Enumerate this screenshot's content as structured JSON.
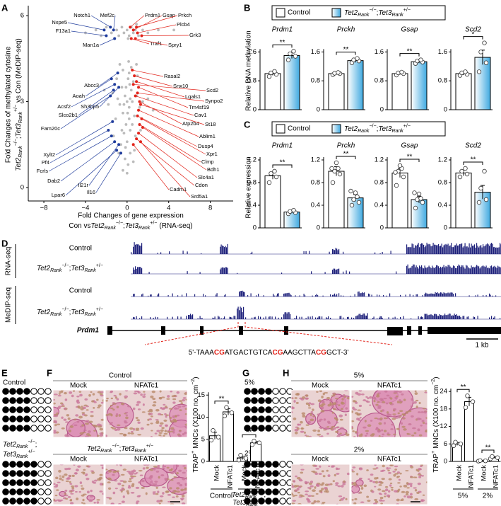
{
  "panel_labels": [
    "A",
    "B",
    "C",
    "D",
    "E",
    "F",
    "G",
    "H"
  ],
  "control": "Control",
  "genotype": [
    "Tet2",
    "Rank",
    "−/−",
    ";",
    "Tet3",
    "Rank",
    "+/−"
  ],
  "scatter_ylabel": [
    "Fold Changes of methylated cytosine",
    "vs Con (MeDIP-seq)"
  ],
  "scatter_xlabel": [
    "Fold Changes of gene expression",
    "Con vs",
    "(RNA-seq)"
  ],
  "b_ylabel": "Relative DNA methylation",
  "c_ylabel": "Relative expression",
  "trap_ylabel": [
    "TRAP",
    "+",
    "MNCs (X100 no. cm",
    "−2",
    ")"
  ],
  "d": {
    "groups": [
      "RNA-seq",
      "MeDIP-seq"
    ],
    "gene": "Prdm1",
    "scale": "1 kb",
    "sequence": [
      "5'-TAAA",
      "CG",
      "ATGACTGTCA",
      "CG",
      "AAGCTTA",
      "CG",
      "GCT-3'"
    ]
  },
  "chart_data": [
    {
      "type": "scatter",
      "xlim": [
        -9.5,
        10.2
      ],
      "ylim": [
        -0.47,
        6.35
      ],
      "xticks": [
        {
          "value": -8,
          "label": "−8"
        },
        {
          "value": -4,
          "label": "−4"
        },
        0,
        4,
        8
      ],
      "yticks": [
        0,
        3,
        6
      ],
      "color": "#555555",
      "x": [
        -3,
        -2.5,
        -2,
        -1.5,
        -1,
        -0.8,
        -0.5,
        -0.3,
        0,
        0.2,
        0.4,
        0.6,
        0.8,
        1.1,
        1.5,
        2,
        3,
        -4,
        4.5,
        -1.2,
        0.1,
        0.9,
        0,
        0.2,
        -0.2,
        0.4,
        -0.4,
        0.1,
        -0.1,
        0.3,
        0.5,
        -0.5,
        0.7,
        -0.7,
        0.2,
        0,
        0.6,
        -0.3,
        0.9,
        -0.9,
        0.3,
        -0.2,
        0.1,
        1.2,
        -1.1,
        0.8,
        -0.6,
        0.4,
        -0.4,
        1.0,
        -1.0,
        0,
        1.5,
        -1.4,
        0.2,
        -0.1,
        0.5,
        -0.5,
        0.7,
        -0.8,
        0.15,
        2,
        -1.8,
        0.3,
        -0.3,
        0.05,
        0.25,
        -0.15,
        1.3,
        -1.3,
        0.6,
        -0.4,
        2.5,
        -2.2,
        0.9,
        -0.7
      ],
      "values": [
        5.5,
        5.3,
        5.6,
        5.4,
        5.5,
        5.3,
        5.6,
        5.4,
        5.5,
        5.3,
        5.6,
        5.4,
        5.5,
        5.3,
        5.5,
        5.4,
        5.5,
        5.4,
        5.5,
        5.2,
        5.2,
        5.7,
        3.0,
        2.8,
        3.2,
        3.4,
        2.6,
        3.8,
        2.2,
        2.0,
        3.0,
        3.5,
        2.5,
        2.9,
        4.0,
        1.6,
        3.7,
        1.9,
        3.2,
        3.1,
        1.2,
        1.0,
        0.8,
        2.8,
        2.4,
        1.8,
        1.5,
        4.2,
        4.1,
        3.9,
        3.8,
        0.5,
        3.0,
        3.3,
        2.4,
        3.5,
        2.2,
        2.0,
        1.3,
        1.2,
        4.4,
        3.1,
        2.9,
        3.1,
        2.9,
        2.6,
        3.6,
        1.4,
        2.0,
        1.8,
        0.9,
        0.6,
        2.7,
        3.4,
        4.3,
        4.3
      ],
      "highlight_groups": [
        {
          "color": "#1f3c9c",
          "labels": [
            "Nxpe5",
            "Notch1",
            "Mef2c",
            "F13a1",
            "Man1a",
            "Abcc3",
            "Aoah",
            "Acsf2",
            "Sh3bp5",
            "Slco2b1",
            "Fam20c",
            "Xylt2",
            "Pf4",
            "Fcrls",
            "Dab2",
            "Lpar6",
            "Il21r",
            "Il16"
          ],
          "x": [
            -2.2,
            -1.6,
            -1.3,
            -2.0,
            -1.2,
            -0.9,
            -1.5,
            -1.2,
            -0.8,
            -1.3,
            -1.6,
            -1.4,
            -1.8,
            -1.5,
            -1.2,
            -1.0,
            -0.8,
            -0.6
          ],
          "values": [
            5.5,
            5.6,
            5.5,
            5.3,
            5.2,
            4.0,
            3.8,
            3.6,
            3.5,
            3.4,
            3.2,
            2.3,
            2.0,
            1.8,
            1.6,
            1.3,
            1.5,
            1.2
          ]
        },
        {
          "color": "#e2231a",
          "labels": [
            "Prdm1",
            "Gsap",
            "Prkch",
            "Plcb4",
            "Grk3",
            "Traf1",
            "Spry1",
            "Rasal2",
            "Snx10",
            "Lgals1",
            "Tm4sf19",
            "Scd2",
            "Synpo2",
            "Cav1",
            "Atp2b4",
            "St18",
            "Ablim1",
            "Dusp4",
            "Xpr1",
            "Clmp",
            "Bdh1",
            "Slc4a1",
            "Cdon",
            "Cadm1",
            "Srd5a1"
          ],
          "x": [
            0.3,
            0.6,
            0.9,
            1.0,
            1.4,
            0.4,
            0.8,
            0.5,
            0.7,
            0.9,
            1.1,
            0.6,
            1.0,
            0.8,
            1.2,
            1.3,
            1.1,
            1.0,
            1.4,
            1.2,
            1.5,
            1.1,
            0.9,
            0.6,
            1.3
          ],
          "values": [
            5.6,
            5.5,
            5.6,
            5.4,
            5.3,
            5.2,
            5.2,
            4.1,
            3.9,
            3.7,
            3.5,
            3.6,
            3.3,
            3.2,
            3.0,
            2.9,
            2.7,
            2.5,
            2.4,
            2.2,
            2.1,
            1.9,
            1.7,
            1.5,
            1.6
          ]
        }
      ]
    },
    {
      "type": "bar",
      "title": "Prdm1",
      "ylim": [
        0,
        2.0
      ],
      "yticks": [
        0,
        0.8,
        1.6
      ],
      "values": [
        1.0,
        1.5
      ],
      "errors": [
        0.05,
        0.08
      ],
      "points": [
        [
          0.92,
          0.98,
          1.02,
          1.06
        ],
        [
          1.38,
          1.48,
          1.55,
          1.62
        ]
      ],
      "significance": [
        "**"
      ],
      "colors": [
        "#ffffff",
        "#3fa9e0"
      ]
    },
    {
      "type": "bar",
      "title": "Prckh",
      "ylim": [
        0,
        2.0
      ],
      "yticks": [
        0,
        0.8,
        1.6
      ],
      "values": [
        1.0,
        1.36
      ],
      "errors": [
        0.03,
        0.05
      ],
      "points": [
        [
          0.97,
          1.0,
          1.01,
          1.03
        ],
        [
          1.3,
          1.35,
          1.38,
          1.42
        ]
      ],
      "significance": [
        "**"
      ],
      "colors": [
        "#ffffff",
        "#3fa9e0"
      ]
    },
    {
      "type": "bar",
      "title": "Gsap",
      "ylim": [
        0,
        2.0
      ],
      "yticks": [
        0,
        0.8,
        1.6
      ],
      "values": [
        1.0,
        1.33
      ],
      "errors": [
        0.03,
        0.04
      ],
      "points": [
        [
          0.96,
          1.0,
          1.02,
          1.04
        ],
        [
          1.28,
          1.32,
          1.35,
          1.38
        ]
      ],
      "significance": [
        "**"
      ],
      "colors": [
        "#ffffff",
        "#3fa9e0"
      ]
    },
    {
      "type": "bar",
      "title": "Scd2",
      "ylim": [
        0,
        2.0
      ],
      "yticks": [
        0,
        0.8,
        1.6
      ],
      "values": [
        1.0,
        1.45
      ],
      "errors": [
        0.04,
        0.2
      ],
      "points": [
        [
          0.95,
          0.98,
          1.02,
          1.05
        ],
        [
          1.05,
          1.3,
          1.6,
          1.85
        ]
      ],
      "significance": [
        "*"
      ],
      "colors": [
        "#ffffff",
        "#3fa9e0"
      ]
    },
    {
      "type": "bar",
      "title": "Prdm1",
      "ylim": [
        0,
        1.4
      ],
      "yticks": [
        0,
        0.4,
        0.8,
        1.2
      ],
      "values": [
        0.92,
        0.28
      ],
      "errors": [
        0.06,
        0.02
      ],
      "points": [
        [
          0.8,
          0.9,
          0.96,
          1.0
        ],
        [
          0.25,
          0.27,
          0.29,
          0.31
        ]
      ],
      "significance": [
        "**"
      ],
      "colors": [
        "#ffffff",
        "#3fa9e0"
      ]
    },
    {
      "type": "bar",
      "title": "Prckh",
      "ylim": [
        0,
        1.4
      ],
      "yticks": [
        0,
        0.4,
        0.8,
        1.2
      ],
      "values": [
        1.0,
        0.53
      ],
      "errors": [
        0.08,
        0.06
      ],
      "points": [
        [
          0.8,
          0.95,
          1.0,
          1.05,
          1.15,
          1.05
        ],
        [
          0.4,
          0.45,
          0.5,
          0.55,
          0.62,
          0.65
        ]
      ],
      "significance": [
        "**"
      ],
      "colors": [
        "#ffffff",
        "#3fa9e0"
      ]
    },
    {
      "type": "bar",
      "title": "Gsap",
      "ylim": [
        0,
        1.4
      ],
      "yticks": [
        0,
        0.4,
        0.8,
        1.2
      ],
      "values": [
        0.97,
        0.5
      ],
      "errors": [
        0.08,
        0.06
      ],
      "points": [
        [
          0.75,
          0.9,
          1.0,
          1.05,
          1.1,
          0.98
        ],
        [
          0.35,
          0.45,
          0.5,
          0.52,
          0.6,
          0.62
        ]
      ],
      "significance": [
        "**"
      ],
      "colors": [
        "#ffffff",
        "#3fa9e0"
      ]
    },
    {
      "type": "bar",
      "title": "Scd2",
      "ylim": [
        0,
        1.4
      ],
      "yticks": [
        0,
        0.4,
        0.8,
        1.2
      ],
      "values": [
        0.97,
        0.63
      ],
      "errors": [
        0.05,
        0.12
      ],
      "points": [
        [
          0.9,
          0.95,
          1.0,
          1.05
        ],
        [
          0.45,
          0.5,
          0.7,
          1.0
        ]
      ],
      "significance": [
        "**"
      ],
      "colors": [
        "#ffffff",
        "#3fa9e0"
      ]
    },
    {
      "type": "bar",
      "categories": [
        "Mock",
        "NFATc1",
        "Mock",
        "NFATc1"
      ],
      "ylim": [
        0,
        16
      ],
      "yticks": [
        0,
        5,
        10,
        15
      ],
      "values": [
        5.8,
        11.2,
        0.8,
        4.2
      ],
      "errors": [
        0.8,
        0.7,
        0.4,
        0.3
      ],
      "points": [
        [
          4.8,
          5.5,
          7.0
        ],
        [
          10.3,
          11.0,
          12.2
        ],
        [
          0.3,
          0.7,
          1.4
        ],
        [
          3.8,
          4.2,
          4.6
        ]
      ],
      "significance": [
        "**",
        "**"
      ],
      "colors": [
        "#ffffff",
        "#ffffff",
        "#ffffff",
        "#ffffff"
      ]
    },
    {
      "type": "bar",
      "categories": [
        "Mock",
        "NFATc1",
        "Mock",
        "NFATc1"
      ],
      "groups": [
        "5%",
        "2%"
      ],
      "ylim": [
        0,
        25
      ],
      "yticks": [
        0,
        6,
        12,
        18,
        24
      ],
      "values": [
        6.0,
        20.5,
        0.2,
        1.3
      ],
      "errors": [
        0.5,
        1.5,
        0.1,
        0.3
      ],
      "points": [
        [
          5.4,
          6.0,
          6.6
        ],
        [
          18.5,
          20.5,
          22.5
        ],
        [
          0.1,
          0.2,
          0.3
        ],
        [
          0.9,
          1.3,
          1.7
        ]
      ],
      "significance": [
        "**",
        "**"
      ],
      "colors": [
        "#ffffff",
        "#ffffff",
        "#ffffff",
        "#ffffff"
      ]
    }
  ]
}
